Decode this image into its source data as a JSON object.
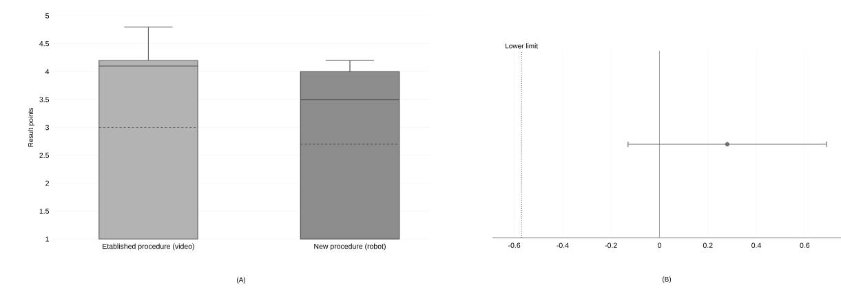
{
  "chart_data": [
    {
      "type": "box",
      "ylabel": "Result points",
      "categories": [
        "Etablished procedure (video)",
        "New procedure (robot)"
      ],
      "boxes": [
        {
          "low": 1,
          "q1": 1,
          "median": 4.1,
          "q3": 4.2,
          "high": 4.8,
          "mean": 3.0
        },
        {
          "low": 1,
          "q1": 1,
          "median": 3.5,
          "q3": 4.0,
          "high": 4.2,
          "mean": 2.7
        }
      ],
      "colors": [
        "#b3b3b3",
        "#8c8c8c"
      ],
      "ylim": [
        1,
        5
      ],
      "yticks": [
        1,
        1.5,
        2,
        2.5,
        3,
        3.5,
        4,
        4.5,
        5
      ],
      "grid": "y",
      "annotations": [
        "(A)"
      ]
    },
    {
      "type": "scatter",
      "orientation": "horizontal",
      "categories": [
        null
      ],
      "values": [
        0.28
      ],
      "errors": [
        [
          -0.13,
          0.69
        ]
      ],
      "color": "#707070",
      "xlim": [
        -0.69,
        0.75
      ],
      "xticks": [
        -0.6,
        -0.4,
        -0.2,
        0,
        0.2,
        0.4,
        0.6
      ],
      "ref_lines": [
        {
          "axis": "x",
          "value": -0.57,
          "label": "Lower limit",
          "color": "#404040",
          "line_style": "dotted"
        },
        {
          "axis": "x",
          "value": 0,
          "color": "#a0a0a0",
          "line_style": "solid"
        }
      ],
      "grid": true,
      "tick_labels": "x",
      "annotations": [
        "(B)"
      ]
    }
  ]
}
